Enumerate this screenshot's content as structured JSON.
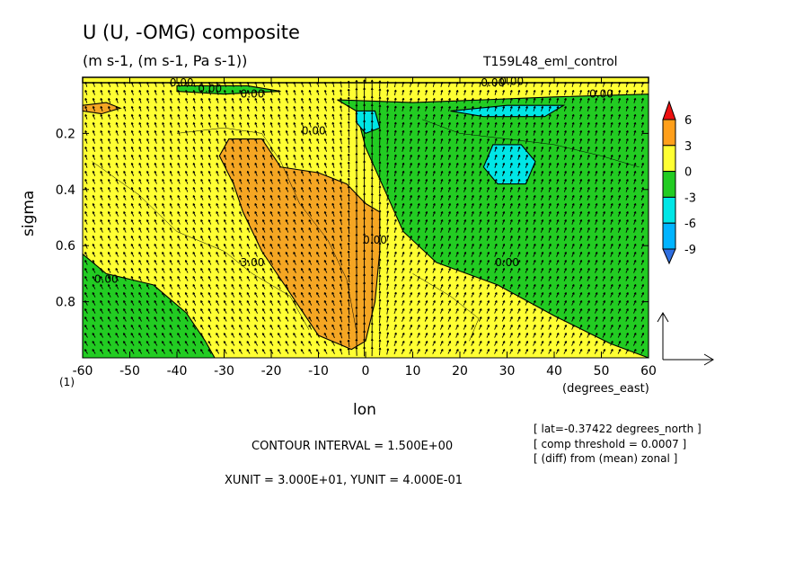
{
  "chart_data": {
    "type": "heatmap",
    "title": "U (U, -OMG) composite",
    "units_line": "(m s-1, (m s-1, Pa s-1))",
    "run_name": "T159L48_eml_control",
    "xlabel": "lon",
    "xunit": "(degrees_east)",
    "ylabel": "sigma",
    "page_number": "(1)",
    "xlim": [
      -60,
      60
    ],
    "ylim": [
      1.0,
      0.0
    ],
    "y_inverted": true,
    "x_ticks": [
      "-60",
      "-50",
      "-40",
      "-30",
      "-20",
      "-10",
      "0",
      "10",
      "20",
      "30",
      "40",
      "50",
      "60"
    ],
    "y_ticks": [
      "0.2",
      "0.4",
      "0.6",
      "0.8"
    ],
    "colorbar": {
      "levels": [
        -12,
        -9,
        -6,
        -3,
        0,
        3,
        6,
        9
      ],
      "tick_labels": [
        "6",
        "3",
        "0",
        "-3",
        "-6",
        "-9"
      ],
      "colors": [
        "#2f6fe0",
        "#00b4ff",
        "#00e6e6",
        "#22cc22",
        "#ffff33",
        "#ff9f1a",
        "#ee1111"
      ]
    },
    "filled_regions": [
      {
        "level": "3 to 6",
        "color": "#f5a623",
        "polygon": [
          [
            -29,
            0.22
          ],
          [
            -22,
            0.22
          ],
          [
            -18,
            0.32
          ],
          [
            -10,
            0.34
          ],
          [
            -4,
            0.38
          ],
          [
            0,
            0.45
          ],
          [
            3,
            0.48
          ],
          [
            3,
            0.62
          ],
          [
            2,
            0.8
          ],
          [
            0,
            0.94
          ],
          [
            -3,
            0.97
          ],
          [
            -10,
            0.92
          ],
          [
            -14,
            0.82
          ],
          [
            -18,
            0.72
          ],
          [
            -22,
            0.62
          ],
          [
            -26,
            0.48
          ],
          [
            -28,
            0.38
          ],
          [
            -31,
            0.28
          ]
        ]
      },
      {
        "level": "3 to 6",
        "color": "#f5a623",
        "polygon": [
          [
            -60,
            0.1
          ],
          [
            -55,
            0.09
          ],
          [
            -52,
            0.11
          ],
          [
            -56,
            0.13
          ],
          [
            -60,
            0.12
          ]
        ]
      },
      {
        "level": "-3 to 0",
        "color": "#22cc22",
        "polygon": [
          [
            -6,
            0.08
          ],
          [
            10,
            0.09
          ],
          [
            25,
            0.08
          ],
          [
            40,
            0.07
          ],
          [
            60,
            0.06
          ],
          [
            60,
            1.0
          ],
          [
            52,
            0.95
          ],
          [
            40,
            0.85
          ],
          [
            28,
            0.74
          ],
          [
            15,
            0.66
          ],
          [
            8,
            0.55
          ],
          [
            4,
            0.4
          ],
          [
            0,
            0.25
          ],
          [
            -2,
            0.12
          ]
        ]
      },
      {
        "level": "-3 to 0",
        "color": "#22cc22",
        "polygon": [
          [
            -60,
            0.63
          ],
          [
            -55,
            0.7
          ],
          [
            -45,
            0.74
          ],
          [
            -38,
            0.84
          ],
          [
            -34,
            0.94
          ],
          [
            -32,
            1.0
          ],
          [
            -60,
            1.0
          ]
        ]
      },
      {
        "level": "-3 to 0",
        "color": "#22cc22",
        "polygon": [
          [
            -40,
            0.03
          ],
          [
            -25,
            0.03
          ],
          [
            -18,
            0.05
          ],
          [
            -30,
            0.06
          ],
          [
            -40,
            0.05
          ]
        ]
      },
      {
        "level": "-6 to -3",
        "color": "#00e6e6",
        "polygon": [
          [
            -2,
            0.12
          ],
          [
            2,
            0.12
          ],
          [
            3,
            0.18
          ],
          [
            0,
            0.2
          ],
          [
            -2,
            0.16
          ]
        ]
      },
      {
        "level": "-6 to -3",
        "color": "#00e6e6",
        "polygon": [
          [
            18,
            0.12
          ],
          [
            30,
            0.1
          ],
          [
            42,
            0.1
          ],
          [
            38,
            0.14
          ],
          [
            25,
            0.14
          ]
        ]
      },
      {
        "level": "-6 to -3",
        "color": "#00e6e6",
        "polygon": [
          [
            27,
            0.24
          ],
          [
            33,
            0.24
          ],
          [
            36,
            0.3
          ],
          [
            34,
            0.38
          ],
          [
            28,
            0.38
          ],
          [
            25,
            0.32
          ]
        ]
      }
    ],
    "contour_labels": [
      {
        "text": "0.00",
        "x": -39,
        "y": 0.02
      },
      {
        "text": "0.00",
        "x": -33,
        "y": 0.04
      },
      {
        "text": "0.00",
        "x": -24,
        "y": 0.06
      },
      {
        "text": "0.00",
        "x": 27,
        "y": 0.02
      },
      {
        "text": "0.00",
        "x": 31,
        "y": 0.015
      },
      {
        "text": "0.00",
        "x": 50,
        "y": 0.06
      },
      {
        "text": "0.00",
        "x": -11,
        "y": 0.19
      },
      {
        "text": "3.00",
        "x": -24,
        "y": 0.66
      },
      {
        "text": "0.00",
        "x": -55,
        "y": 0.72
      },
      {
        "text": "0.00",
        "x": 30,
        "y": 0.66
      },
      {
        "text": "0.00",
        "x": 2,
        "y": 0.58
      }
    ],
    "reference_vector": {
      "xunit": 30.0,
      "yunit": 0.4
    },
    "contour_interval_text": "CONTOUR INTERVAL = 1.500E+00",
    "xyunit_text": "XUNIT = 3.000E+01, YUNIT = 4.000E-01",
    "info_lines": [
      "[ lat=-0.37422 degrees_north ]",
      "[ comp threshold = 0.0007 ]",
      "[ (diff) from (mean) zonal ]"
    ]
  }
}
